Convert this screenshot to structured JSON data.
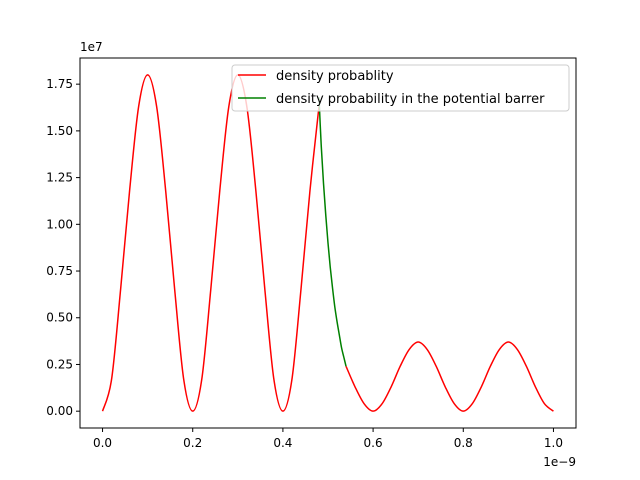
{
  "chart_data": {
    "type": "line",
    "title": "",
    "xlabel": "",
    "ylabel": "",
    "x_offset_label": "1e−9",
    "y_offset_label": "1e7",
    "xlim": [
      -0.05,
      1.05
    ],
    "ylim": [
      -0.09,
      1.89
    ],
    "x_ticks": [
      0.0,
      0.2,
      0.4,
      0.6,
      0.8,
      1.0
    ],
    "x_tick_labels": [
      "0.0",
      "0.2",
      "0.4",
      "0.6",
      "0.8",
      "1.0"
    ],
    "y_ticks": [
      0.0,
      0.25,
      0.5,
      0.75,
      1.0,
      1.25,
      1.5,
      1.75
    ],
    "y_tick_labels": [
      "0.00",
      "0.25",
      "0.50",
      "0.75",
      "1.00",
      "1.25",
      "1.50",
      "1.75"
    ],
    "grid": false,
    "legend_position": "top-right",
    "series": [
      {
        "name": "density probablity",
        "color": "#ff0000",
        "segments": [
          {
            "x": [
              0.0,
              0.02,
              0.04,
              0.06,
              0.08,
              0.1,
              0.12,
              0.14,
              0.16,
              0.18,
              0.2,
              0.22,
              0.24,
              0.26,
              0.28,
              0.3,
              0.32,
              0.34,
              0.36,
              0.38,
              0.4,
              0.42,
              0.44,
              0.46,
              0.48
            ],
            "y": [
              0.0,
              0.17,
              0.65,
              1.18,
              1.63,
              1.8,
              1.63,
              1.18,
              0.65,
              0.17,
              0.0,
              0.17,
              0.65,
              1.18,
              1.63,
              1.8,
              1.63,
              1.18,
              0.65,
              0.17,
              0.0,
              0.17,
              0.65,
              1.18,
              1.63
            ]
          },
          {
            "x": [
              0.54,
              0.56,
              0.58,
              0.6,
              0.62,
              0.64,
              0.66,
              0.68,
              0.7,
              0.72,
              0.74,
              0.76,
              0.78,
              0.8,
              0.82,
              0.84,
              0.86,
              0.88,
              0.9,
              0.92,
              0.94,
              0.96,
              0.98,
              1.0
            ],
            "y": [
              0.24,
              0.13,
              0.04,
              0.0,
              0.04,
              0.13,
              0.24,
              0.33,
              0.37,
              0.33,
              0.24,
              0.13,
              0.04,
              0.0,
              0.04,
              0.13,
              0.24,
              0.33,
              0.37,
              0.33,
              0.24,
              0.13,
              0.04,
              0.0
            ]
          }
        ]
      },
      {
        "name": "density probability in the potential barrer",
        "color": "#008000",
        "segments": [
          {
            "x": [
              0.48,
              0.485,
              0.49,
              0.495,
              0.5,
              0.505,
              0.51,
              0.515,
              0.52,
              0.525,
              0.53,
              0.535,
              0.54
            ],
            "y": [
              1.68,
              1.42,
              1.22,
              1.05,
              0.9,
              0.77,
              0.66,
              0.56,
              0.48,
              0.41,
              0.34,
              0.29,
              0.24
            ]
          }
        ]
      }
    ]
  }
}
